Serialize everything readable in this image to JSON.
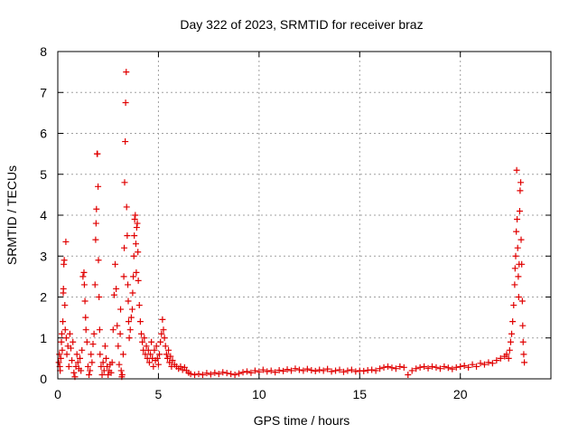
{
  "chart_data": {
    "type": "scatter",
    "title": "Day 322 of 2023, SRMTID for receiver braz",
    "xlabel": "GPS time / hours",
    "ylabel": "SRMTID / TECUs",
    "xlim": [
      0,
      24.5
    ],
    "ylim": [
      0,
      8
    ],
    "xticks": [
      0,
      5,
      10,
      15,
      20
    ],
    "yticks": [
      0,
      1,
      2,
      3,
      4,
      5,
      6,
      7,
      8
    ],
    "grid": true,
    "marker": "+",
    "color": "#e00000",
    "series": [
      {
        "name": "SRMTID",
        "points": [
          [
            0.05,
            0.4
          ],
          [
            0.08,
            0.6
          ],
          [
            0.1,
            0.3
          ],
          [
            0.12,
            0.2
          ],
          [
            0.15,
            0.5
          ],
          [
            0.18,
            0.9
          ],
          [
            0.2,
            1.1
          ],
          [
            0.22,
            0.7
          ],
          [
            0.25,
            1.4
          ],
          [
            0.27,
            2.1
          ],
          [
            0.28,
            2.2
          ],
          [
            0.3,
            2.8
          ],
          [
            0.32,
            2.9
          ],
          [
            0.35,
            1.8
          ],
          [
            0.37,
            1.2
          ],
          [
            0.4,
            3.35
          ],
          [
            0.42,
            1.0
          ],
          [
            0.45,
            0.6
          ],
          [
            0.5,
            0.8
          ],
          [
            0.55,
            0.3
          ],
          [
            0.6,
            1.1
          ],
          [
            0.65,
            0.75
          ],
          [
            0.7,
            0.45
          ],
          [
            0.75,
            0.9
          ],
          [
            0.8,
            0.15
          ],
          [
            0.85,
            0.05
          ],
          [
            0.9,
            0.3
          ],
          [
            0.95,
            0.6
          ],
          [
            1.0,
            0.4
          ],
          [
            1.05,
            0.25
          ],
          [
            1.1,
            0.5
          ],
          [
            1.15,
            0.2
          ],
          [
            1.2,
            0.7
          ],
          [
            1.25,
            2.5
          ],
          [
            1.3,
            2.6
          ],
          [
            1.32,
            2.3
          ],
          [
            1.35,
            1.9
          ],
          [
            1.38,
            1.5
          ],
          [
            1.4,
            1.2
          ],
          [
            1.45,
            0.9
          ],
          [
            1.5,
            0.3
          ],
          [
            1.55,
            0.1
          ],
          [
            1.6,
            0.2
          ],
          [
            1.65,
            0.6
          ],
          [
            1.7,
            0.4
          ],
          [
            1.75,
            0.85
          ],
          [
            1.8,
            1.1
          ],
          [
            1.85,
            2.3
          ],
          [
            1.88,
            3.4
          ],
          [
            1.9,
            3.8
          ],
          [
            1.92,
            4.15
          ],
          [
            1.95,
            5.5
          ],
          [
            1.97,
            5.5
          ],
          [
            2.0,
            4.7
          ],
          [
            2.02,
            2.9
          ],
          [
            2.05,
            2.0
          ],
          [
            2.08,
            1.2
          ],
          [
            2.1,
            0.6
          ],
          [
            2.15,
            0.3
          ],
          [
            2.2,
            0.1
          ],
          [
            2.25,
            0.4
          ],
          [
            2.3,
            0.2
          ],
          [
            2.35,
            0.8
          ],
          [
            2.4,
            0.5
          ],
          [
            2.45,
            0.3
          ],
          [
            2.5,
            0.1
          ],
          [
            2.55,
            0.2
          ],
          [
            2.6,
            0.35
          ],
          [
            2.65,
            0.15
          ],
          [
            2.7,
            0.4
          ],
          [
            2.75,
            1.2
          ],
          [
            2.8,
            2.05
          ],
          [
            2.85,
            2.8
          ],
          [
            2.9,
            2.2
          ],
          [
            2.95,
            1.3
          ],
          [
            3.0,
            0.8
          ],
          [
            3.05,
            0.35
          ],
          [
            3.1,
            1.1
          ],
          [
            3.12,
            1.7
          ],
          [
            3.15,
            0.2
          ],
          [
            3.18,
            0.05
          ],
          [
            3.2,
            0.1
          ],
          [
            3.25,
            0.6
          ],
          [
            3.28,
            2.5
          ],
          [
            3.3,
            3.2
          ],
          [
            3.32,
            4.8
          ],
          [
            3.35,
            5.8
          ],
          [
            3.37,
            6.75
          ],
          [
            3.4,
            7.5
          ],
          [
            3.42,
            4.2
          ],
          [
            3.45,
            3.5
          ],
          [
            3.48,
            2.3
          ],
          [
            3.5,
            1.9
          ],
          [
            3.52,
            1.4
          ],
          [
            3.55,
            1.0
          ],
          [
            3.6,
            1.2
          ],
          [
            3.65,
            1.5
          ],
          [
            3.7,
            1.7
          ],
          [
            3.72,
            2.1
          ],
          [
            3.75,
            2.5
          ],
          [
            3.78,
            3.0
          ],
          [
            3.8,
            3.5
          ],
          [
            3.82,
            3.9
          ],
          [
            3.85,
            4.0
          ],
          [
            3.88,
            3.3
          ],
          [
            3.9,
            2.6
          ],
          [
            3.92,
            3.7
          ],
          [
            3.95,
            3.8
          ],
          [
            3.98,
            3.1
          ],
          [
            4.0,
            2.4
          ],
          [
            4.05,
            1.8
          ],
          [
            4.1,
            1.4
          ],
          [
            4.15,
            1.1
          ],
          [
            4.2,
            0.9
          ],
          [
            4.25,
            0.7
          ],
          [
            4.3,
            1.0
          ],
          [
            4.35,
            0.6
          ],
          [
            4.4,
            0.8
          ],
          [
            4.45,
            0.5
          ],
          [
            4.5,
            0.7
          ],
          [
            4.55,
            0.4
          ],
          [
            4.6,
            0.6
          ],
          [
            4.65,
            0.9
          ],
          [
            4.7,
            0.5
          ],
          [
            4.75,
            0.3
          ],
          [
            4.8,
            0.7
          ],
          [
            4.85,
            0.45
          ],
          [
            4.9,
            0.8
          ],
          [
            4.95,
            0.5
          ],
          [
            5.0,
            0.35
          ],
          [
            5.05,
            0.6
          ],
          [
            5.1,
            0.9
          ],
          [
            5.15,
            1.1
          ],
          [
            5.2,
            1.45
          ],
          [
            5.25,
            1.2
          ],
          [
            5.3,
            1.0
          ],
          [
            5.35,
            0.8
          ],
          [
            5.4,
            0.6
          ],
          [
            5.45,
            0.5
          ],
          [
            5.5,
            0.7
          ],
          [
            5.55,
            0.4
          ],
          [
            5.6,
            0.55
          ],
          [
            5.65,
            0.3
          ],
          [
            5.7,
            0.45
          ],
          [
            5.8,
            0.35
          ],
          [
            5.9,
            0.3
          ],
          [
            6.0,
            0.25
          ],
          [
            6.1,
            0.3
          ],
          [
            6.2,
            0.22
          ],
          [
            6.3,
            0.28
          ],
          [
            6.4,
            0.2
          ],
          [
            6.5,
            0.15
          ],
          [
            6.6,
            0.12
          ],
          [
            6.8,
            0.1
          ],
          [
            7.0,
            0.12
          ],
          [
            7.2,
            0.1
          ],
          [
            7.4,
            0.14
          ],
          [
            7.6,
            0.11
          ],
          [
            7.8,
            0.15
          ],
          [
            8.0,
            0.12
          ],
          [
            8.2,
            0.16
          ],
          [
            8.4,
            0.14
          ],
          [
            8.6,
            0.12
          ],
          [
            8.8,
            0.1
          ],
          [
            9.0,
            0.13
          ],
          [
            9.2,
            0.16
          ],
          [
            9.4,
            0.18
          ],
          [
            9.6,
            0.15
          ],
          [
            9.8,
            0.2
          ],
          [
            10.0,
            0.17
          ],
          [
            10.2,
            0.22
          ],
          [
            10.4,
            0.18
          ],
          [
            10.6,
            0.2
          ],
          [
            10.8,
            0.16
          ],
          [
            11.0,
            0.21
          ],
          [
            11.2,
            0.19
          ],
          [
            11.4,
            0.23
          ],
          [
            11.6,
            0.2
          ],
          [
            11.8,
            0.25
          ],
          [
            12.0,
            0.22
          ],
          [
            12.2,
            0.2
          ],
          [
            12.4,
            0.24
          ],
          [
            12.6,
            0.21
          ],
          [
            12.8,
            0.19
          ],
          [
            13.0,
            0.22
          ],
          [
            13.2,
            0.2
          ],
          [
            13.4,
            0.24
          ],
          [
            13.6,
            0.18
          ],
          [
            13.8,
            0.2
          ],
          [
            14.0,
            0.22
          ],
          [
            14.2,
            0.17
          ],
          [
            14.4,
            0.2
          ],
          [
            14.6,
            0.22
          ],
          [
            14.8,
            0.18
          ],
          [
            15.0,
            0.2
          ],
          [
            15.2,
            0.19
          ],
          [
            15.4,
            0.21
          ],
          [
            15.6,
            0.22
          ],
          [
            15.8,
            0.2
          ],
          [
            16.0,
            0.25
          ],
          [
            16.2,
            0.28
          ],
          [
            16.4,
            0.3
          ],
          [
            16.6,
            0.27
          ],
          [
            16.8,
            0.25
          ],
          [
            17.0,
            0.3
          ],
          [
            17.2,
            0.28
          ],
          [
            17.4,
            0.1
          ],
          [
            17.6,
            0.2
          ],
          [
            17.8,
            0.25
          ],
          [
            18.0,
            0.28
          ],
          [
            18.2,
            0.3
          ],
          [
            18.4,
            0.26
          ],
          [
            18.6,
            0.3
          ],
          [
            18.8,
            0.28
          ],
          [
            19.0,
            0.25
          ],
          [
            19.2,
            0.3
          ],
          [
            19.4,
            0.27
          ],
          [
            19.6,
            0.24
          ],
          [
            19.8,
            0.28
          ],
          [
            20.0,
            0.3
          ],
          [
            20.2,
            0.32
          ],
          [
            20.4,
            0.28
          ],
          [
            20.6,
            0.35
          ],
          [
            20.8,
            0.3
          ],
          [
            21.0,
            0.38
          ],
          [
            21.2,
            0.35
          ],
          [
            21.4,
            0.4
          ],
          [
            21.6,
            0.38
          ],
          [
            21.8,
            0.45
          ],
          [
            22.0,
            0.5
          ],
          [
            22.2,
            0.55
          ],
          [
            22.3,
            0.6
          ],
          [
            22.4,
            0.5
          ],
          [
            22.45,
            0.7
          ],
          [
            22.5,
            0.9
          ],
          [
            22.55,
            1.1
          ],
          [
            22.6,
            1.4
          ],
          [
            22.65,
            1.8
          ],
          [
            22.7,
            2.3
          ],
          [
            22.72,
            2.7
          ],
          [
            22.75,
            3.0
          ],
          [
            22.78,
            3.6
          ],
          [
            22.8,
            5.1
          ],
          [
            22.82,
            3.9
          ],
          [
            22.85,
            3.2
          ],
          [
            22.88,
            2.5
          ],
          [
            22.9,
            2.0
          ],
          [
            22.92,
            2.8
          ],
          [
            22.95,
            4.1
          ],
          [
            22.97,
            4.6
          ],
          [
            23.0,
            4.8
          ],
          [
            23.02,
            3.4
          ],
          [
            23.05,
            2.8
          ],
          [
            23.08,
            1.9
          ],
          [
            23.1,
            1.3
          ],
          [
            23.12,
            0.9
          ],
          [
            23.15,
            0.6
          ],
          [
            23.18,
            0.4
          ]
        ]
      }
    ]
  }
}
